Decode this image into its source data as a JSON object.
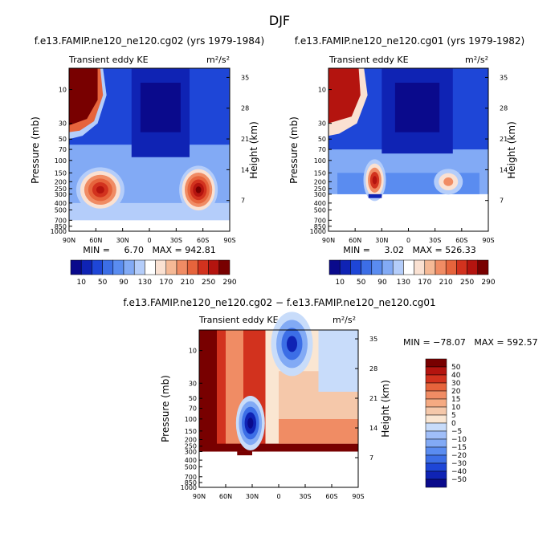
{
  "figure": {
    "title": "DJF",
    "palette_main": [
      "#0a0a8c",
      "#0f23b4",
      "#1e46d7",
      "#3c6ee6",
      "#5a8cf0",
      "#82aaf5",
      "#b4cdfa",
      "#ffffff",
      "#fae1d2",
      "#f5b996",
      "#f08c64",
      "#e6643c",
      "#d2321e",
      "#b4140f",
      "#780000"
    ],
    "palette_diff": [
      "#0a0a8c",
      "#0f23b4",
      "#1e46d7",
      "#3c6ee6",
      "#5a8cf0",
      "#82aaf5",
      "#a0bef8",
      "#c8dcfa",
      "#fae6d2",
      "#f5c8aa",
      "#f5aa82",
      "#f08c64",
      "#e6643c",
      "#d2321e",
      "#b4140f",
      "#780000"
    ]
  },
  "chart_data": [
    {
      "type": "heatmap",
      "panel": "top-left",
      "title": "f.e13.FAMIP.ne120_ne120.cg02 (yrs 1979-1984)",
      "left_label": "Transient eddy KE",
      "units_label": "m²/s²",
      "ylabel": "Pressure (mb)",
      "ylabel_right": "Height (km)",
      "x_ticks": [
        "90N",
        "60N",
        "30N",
        "0",
        "30S",
        "60S",
        "90S"
      ],
      "y_ticks": [
        "10",
        "30",
        "50",
        "70",
        "100",
        "150",
        "200",
        "250",
        "300",
        "400",
        "500",
        "700",
        "850",
        "1000"
      ],
      "height_ticks": [
        "35",
        "28",
        "21",
        "14",
        "7"
      ],
      "stats": "MIN =     6.70   MAX = 942.81",
      "colorbar_labels": [
        "10",
        "50",
        "90",
        "130",
        "170",
        "210",
        "250",
        "290"
      ],
      "data_bottom_mb": 1000,
      "blobs": [
        {
          "lat": 62,
          "p": 250,
          "val": 290
        },
        {
          "lat": -55,
          "p": 250,
          "val": 290
        },
        {
          "lat": 90,
          "p": 8,
          "val": 290
        }
      ]
    },
    {
      "type": "heatmap",
      "panel": "top-right",
      "title": "f.e13.FAMIP.ne120_ne120.cg01 (yrs 1979-1982)",
      "left_label": "Transient eddy KE",
      "units_label": "m²/s²",
      "ylabel": "Pressure (mb)",
      "ylabel_right": "Height (km)",
      "x_ticks": [
        "90N",
        "60N",
        "30N",
        "0",
        "30S",
        "60S",
        "90S"
      ],
      "y_ticks": [
        "10",
        "30",
        "50",
        "70",
        "100",
        "150",
        "200",
        "250",
        "300",
        "400",
        "500",
        "700",
        "850",
        "1000"
      ],
      "height_ticks": [
        "35",
        "28",
        "21",
        "14",
        "7"
      ],
      "stats": "MIN =     3.02   MAX = 526.33",
      "colorbar_labels": [
        "10",
        "50",
        "90",
        "130",
        "170",
        "210",
        "250",
        "290"
      ],
      "data_bottom_mb": 300,
      "blobs": [
        {
          "lat": 38,
          "p": 180,
          "val": 290
        },
        {
          "lat": -45,
          "p": 190,
          "val": 210
        },
        {
          "lat": 90,
          "p": 8,
          "val": 290
        }
      ]
    },
    {
      "type": "heatmap",
      "panel": "bottom-difference",
      "title": "f.e13.FAMIP.ne120_ne120.cg02 − f.e13.FAMIP.ne120_ne120.cg01",
      "left_label": "Transient eddy KE",
      "units_label": "m²/s²",
      "ylabel": "Pressure (mb)",
      "ylabel_right": "Height (km)",
      "x_ticks": [
        "90N",
        "60N",
        "30N",
        "0",
        "30S",
        "60S",
        "90S"
      ],
      "y_ticks": [
        "10",
        "30",
        "50",
        "70",
        "100",
        "150",
        "200",
        "250",
        "300",
        "400",
        "500",
        "700",
        "850",
        "1000"
      ],
      "height_ticks": [
        "35",
        "28",
        "21",
        "14",
        "7"
      ],
      "stats": "MIN = −78.07   MAX = 592.57",
      "colorbar_labels": [
        "50",
        "40",
        "30",
        "20",
        "15",
        "10",
        "5",
        "0",
        "−5",
        "−10",
        "−15",
        "−20",
        "−30",
        "−40",
        "−50"
      ],
      "data_bottom_mb": 300,
      "blobs": [
        {
          "lat": 30,
          "p": 100,
          "val": -50
        },
        {
          "lat": -15,
          "p": 5,
          "val": -50
        }
      ]
    }
  ]
}
